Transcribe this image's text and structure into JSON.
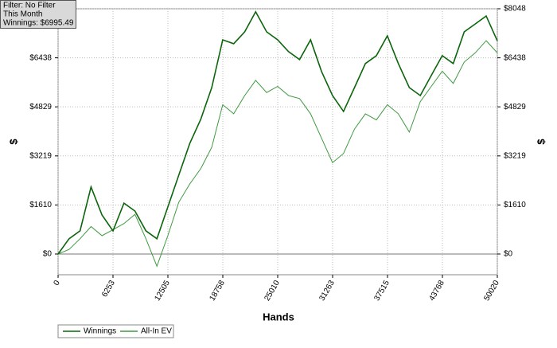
{
  "chart_data": {
    "type": "line",
    "info": [
      "Filter: No Filter",
      "This Month",
      "Winnings: $6995.49"
    ],
    "x_label": "Hands",
    "y_label": "$",
    "y2_label": "$",
    "x": [
      0,
      1250,
      2500,
      3750,
      5000,
      6250,
      7500,
      8750,
      10000,
      11250,
      12500,
      13750,
      15000,
      16250,
      17500,
      18750,
      20000,
      21250,
      22500,
      23750,
      25000,
      26250,
      27500,
      28750,
      30000,
      31250,
      32500,
      33750,
      35000,
      36250,
      37500,
      38750,
      40000,
      41250,
      42500,
      43750,
      45000,
      46250,
      47500,
      48750,
      50020
    ],
    "series": [
      {
        "name": "Winnings",
        "color": "#0b650b",
        "values": [
          0,
          500,
          760,
          2200,
          1280,
          760,
          1670,
          1410,
          760,
          500,
          1540,
          2590,
          3630,
          4420,
          5460,
          7030,
          6900,
          7290,
          7950,
          7290,
          7030,
          6640,
          6380,
          7030,
          5990,
          5200,
          4680,
          5460,
          6250,
          6510,
          7160,
          6250,
          5460,
          5200,
          5860,
          6510,
          6250,
          7290,
          7550,
          7810,
          6995
        ]
      },
      {
        "name": "All-In EV",
        "color": "#3f9a3f",
        "values": [
          0,
          150,
          500,
          900,
          600,
          800,
          1000,
          1300,
          500,
          -400,
          600,
          1700,
          2300,
          2800,
          3500,
          4900,
          4600,
          5200,
          5700,
          5300,
          5500,
          5200,
          5100,
          4600,
          3800,
          3000,
          3300,
          4100,
          4600,
          4400,
          4900,
          4600,
          4000,
          5000,
          5500,
          6000,
          5600,
          6300,
          6600,
          7000,
          6600
        ]
      }
    ],
    "xlim": [
      0,
      50020
    ],
    "xticks": [
      0,
      6253,
      12505,
      18758,
      25010,
      31263,
      37515,
      43768,
      50020
    ],
    "ylim": [
      -680,
      8048
    ],
    "yticks": [
      {
        "value": 0,
        "label": "$0"
      },
      {
        "value": 1610,
        "label": "$1610"
      },
      {
        "value": 3219,
        "label": "$3219"
      },
      {
        "value": 4829,
        "label": "$4829"
      },
      {
        "value": 6438,
        "label": "$6438"
      },
      {
        "value": 8048,
        "label": "$8048"
      }
    ],
    "grid": true,
    "legend": "bottom-left"
  }
}
